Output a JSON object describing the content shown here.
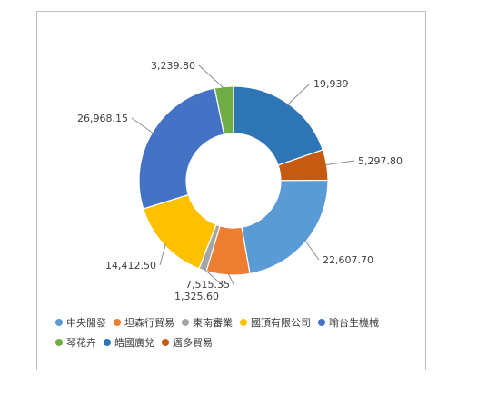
{
  "chart_data": {
    "type": "pie",
    "donut": true,
    "title": "",
    "legend_position": "bottom",
    "series": [
      {
        "name": "",
        "slices": [
          {
            "label": "中央閒發",
            "value": 22607.7,
            "display": "22,607.70",
            "color": "#5B9BD5"
          },
          {
            "label": "坦森行貿易",
            "value": 7515.35,
            "display": "7,515.35",
            "color": "#ED7D31"
          },
          {
            "label": "東南審業",
            "value": 1325.6,
            "display": "1,325.60",
            "color": "#A5A5A5"
          },
          {
            "label": "國頂有限公司",
            "value": 14412.5,
            "display": "14,412.50",
            "color": "#FFC000"
          },
          {
            "label": "喻台生機械",
            "value": 26968.15,
            "display": "26,968.15",
            "color": "#4472C4"
          },
          {
            "label": "琴花卉",
            "value": 3239.8,
            "display": "3,239.80",
            "color": "#70AD47"
          },
          {
            "label": "皓國廣兌",
            "value": 19939,
            "display": "19,939",
            "color": "#2E75B6"
          },
          {
            "label": "邁多貿易",
            "value": 5297.8,
            "display": "5,297.80",
            "color": "#C55A11"
          }
        ]
      }
    ]
  }
}
